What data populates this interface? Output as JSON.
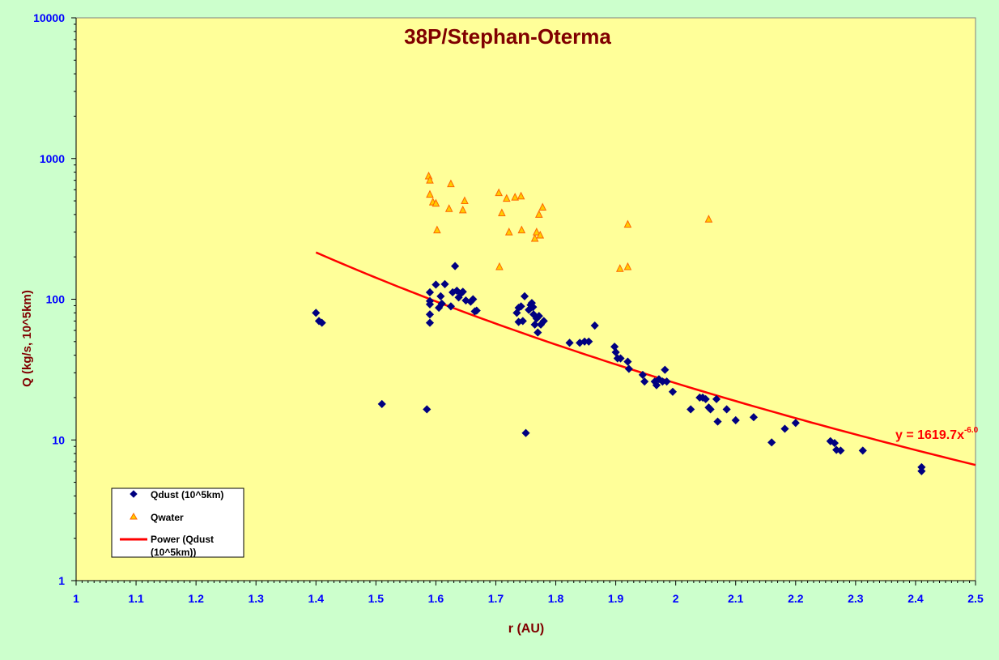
{
  "chart_data": {
    "type": "scatter",
    "title": "38P/Stephan-Oterma",
    "xlabel": "r (AU)",
    "ylabel": "Q (kg/s, 10^5km)",
    "xlim": [
      1,
      2.5
    ],
    "ylim": [
      1,
      10000
    ],
    "yscale": "log",
    "x_ticks": [
      "1",
      "1.1",
      "1.2",
      "1.3",
      "1.4",
      "1.5",
      "1.6",
      "1.7",
      "1.8",
      "1.9",
      "2",
      "2.1",
      "2.2",
      "2.3",
      "2.4",
      "2.5"
    ],
    "y_ticks": [
      "1",
      "10",
      "100",
      "1000",
      "10000"
    ],
    "grid": false,
    "legend_position": "bottom-left",
    "colors": {
      "plot_bg": "#ffff99",
      "outer_bg": "#ccffcc",
      "axis_text": "#0000ff",
      "title": "#800000",
      "axis_label": "#800000",
      "qdust": "#000080",
      "qwater_stroke": "#ff6600",
      "qwater_fill": "#ffcc00",
      "trend": "#ff0000"
    },
    "series": [
      {
        "name": "Qdust (10^5km)",
        "marker": "diamond",
        "points": [
          [
            1.4,
            80
          ],
          [
            1.405,
            70
          ],
          [
            1.41,
            68
          ],
          [
            1.51,
            18
          ],
          [
            1.585,
            16.5
          ],
          [
            1.59,
            112
          ],
          [
            1.59,
            97
          ],
          [
            1.59,
            92
          ],
          [
            1.59,
            78
          ],
          [
            1.59,
            68
          ],
          [
            1.6,
            127
          ],
          [
            1.605,
            87
          ],
          [
            1.608,
            105
          ],
          [
            1.61,
            93
          ],
          [
            1.615,
            128
          ],
          [
            1.625,
            89
          ],
          [
            1.628,
            112
          ],
          [
            1.632,
            172
          ],
          [
            1.635,
            115
          ],
          [
            1.638,
            103
          ],
          [
            1.642,
            110
          ],
          [
            1.645,
            113
          ],
          [
            1.65,
            98
          ],
          [
            1.658,
            96
          ],
          [
            1.662,
            100
          ],
          [
            1.665,
            82
          ],
          [
            1.668,
            83
          ],
          [
            1.735,
            80
          ],
          [
            1.738,
            87
          ],
          [
            1.738,
            69
          ],
          [
            1.742,
            89
          ],
          [
            1.745,
            70
          ],
          [
            1.748,
            105
          ],
          [
            1.75,
            11.2
          ],
          [
            1.755,
            84
          ],
          [
            1.758,
            91
          ],
          [
            1.76,
            94
          ],
          [
            1.762,
            88
          ],
          [
            1.763,
            78
          ],
          [
            1.765,
            66
          ],
          [
            1.768,
            73
          ],
          [
            1.77,
            58
          ],
          [
            1.772,
            76
          ],
          [
            1.775,
            66
          ],
          [
            1.78,
            70
          ],
          [
            1.823,
            49
          ],
          [
            1.84,
            49
          ],
          [
            1.848,
            50
          ],
          [
            1.855,
            50
          ],
          [
            1.865,
            65
          ],
          [
            1.898,
            46
          ],
          [
            1.9,
            42
          ],
          [
            1.903,
            38
          ],
          [
            1.908,
            38
          ],
          [
            1.92,
            36
          ],
          [
            1.922,
            32
          ],
          [
            1.945,
            29
          ],
          [
            1.948,
            26
          ],
          [
            1.965,
            26
          ],
          [
            1.968,
            24.5
          ],
          [
            1.972,
            27
          ],
          [
            1.978,
            26
          ],
          [
            1.982,
            31.5
          ],
          [
            1.985,
            26
          ],
          [
            1.995,
            22
          ],
          [
            2.025,
            16.5
          ],
          [
            2.04,
            20
          ],
          [
            2.045,
            20
          ],
          [
            2.05,
            19.5
          ],
          [
            2.055,
            17
          ],
          [
            2.058,
            16.5
          ],
          [
            2.068,
            19.5
          ],
          [
            2.07,
            13.5
          ],
          [
            2.085,
            16.5
          ],
          [
            2.1,
            13.8
          ],
          [
            2.13,
            14.5
          ],
          [
            2.16,
            9.6
          ],
          [
            2.182,
            12
          ],
          [
            2.2,
            13.2
          ],
          [
            2.258,
            9.8
          ],
          [
            2.265,
            9.5
          ],
          [
            2.268,
            8.5
          ],
          [
            2.275,
            8.4
          ],
          [
            2.312,
            8.4
          ],
          [
            2.41,
            6.4
          ],
          [
            2.41,
            6.0
          ]
        ]
      },
      {
        "name": "Qwater",
        "marker": "triangle",
        "points": [
          [
            1.588,
            750
          ],
          [
            1.59,
            700
          ],
          [
            1.59,
            555
          ],
          [
            1.595,
            490
          ],
          [
            1.6,
            480
          ],
          [
            1.602,
            310
          ],
          [
            1.622,
            440
          ],
          [
            1.625,
            660
          ],
          [
            1.645,
            430
          ],
          [
            1.648,
            500
          ],
          [
            1.705,
            570
          ],
          [
            1.706,
            170
          ],
          [
            1.71,
            410
          ],
          [
            1.718,
            520
          ],
          [
            1.722,
            300
          ],
          [
            1.732,
            530
          ],
          [
            1.742,
            540
          ],
          [
            1.743,
            310
          ],
          [
            1.765,
            270
          ],
          [
            1.768,
            300
          ],
          [
            1.772,
            400
          ],
          [
            1.774,
            285
          ],
          [
            1.778,
            450
          ],
          [
            1.907,
            165
          ],
          [
            1.92,
            170
          ],
          [
            1.92,
            340
          ],
          [
            2.055,
            370
          ]
        ]
      },
      {
        "name": "Power (Qdust (10^5km))",
        "type": "line",
        "equation": "y = 1619.7x^-6.0",
        "coefficient": 1619.7,
        "exponent": -6.0,
        "x_start": 1.4,
        "x_end": 2.5
      }
    ],
    "legend": [
      "Qdust (10^5km)",
      "Qwater",
      "Power (Qdust",
      "(10^5km))"
    ],
    "annotation": {
      "text": "y = 1619.7x",
      "superscript": "-6.0"
    }
  }
}
